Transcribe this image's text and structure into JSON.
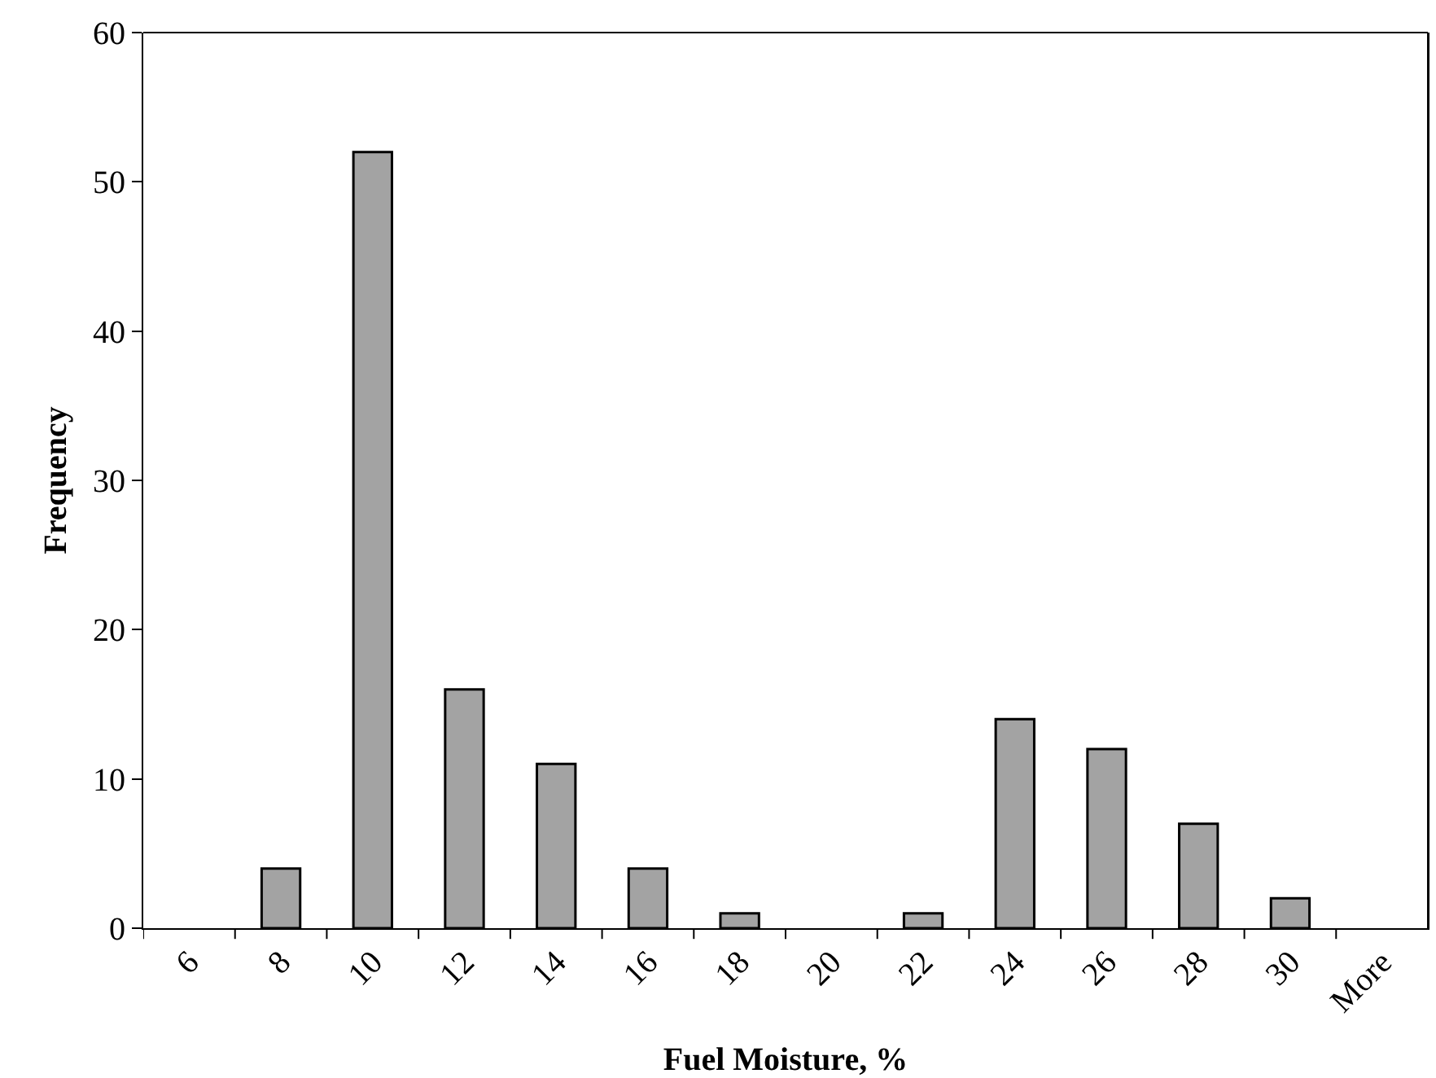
{
  "chart_data": {
    "type": "bar",
    "xlabel": "Fuel Moisture, %",
    "ylabel": "Frequency",
    "categories": [
      "6",
      "8",
      "10",
      "12",
      "14",
      "16",
      "18",
      "20",
      "22",
      "24",
      "26",
      "28",
      "30",
      "More"
    ],
    "values": [
      0,
      4,
      52,
      16,
      11,
      4,
      1,
      0,
      1,
      14,
      12,
      7,
      2,
      0
    ],
    "color": "#a3a3a3",
    "ylim": [
      0,
      60
    ],
    "yticks": [
      0,
      10,
      20,
      30,
      40,
      50,
      60
    ],
    "grid": false
  }
}
